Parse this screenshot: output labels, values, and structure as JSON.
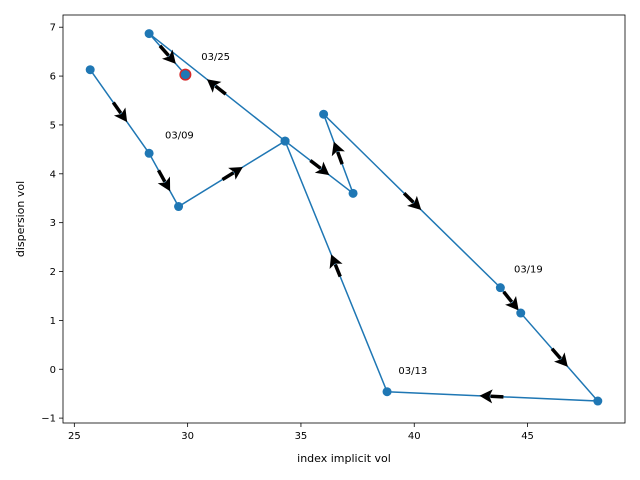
{
  "chart_data": {
    "type": "line",
    "xlabel": "index implicit vol",
    "ylabel": "dispersion vol",
    "xlim": [
      24.5,
      49.3
    ],
    "ylim": [
      -1.1,
      7.25
    ],
    "xticks": [
      25,
      30,
      35,
      40,
      45
    ],
    "yticks": [
      -1,
      0,
      1,
      2,
      3,
      4,
      5,
      6,
      7
    ],
    "series_color": "#1f77b4",
    "highlight_color": "#d62728",
    "arrow_color": "#000000",
    "grid": false,
    "points": [
      {
        "x": 25.7,
        "y": 6.13
      },
      {
        "x": 28.3,
        "y": 4.42
      },
      {
        "x": 29.6,
        "y": 3.33
      },
      {
        "x": 34.3,
        "y": 4.67
      },
      {
        "x": 37.3,
        "y": 3.6
      },
      {
        "x": 36.0,
        "y": 5.22
      },
      {
        "x": 43.8,
        "y": 1.67
      },
      {
        "x": 44.7,
        "y": 1.15
      },
      {
        "x": 48.1,
        "y": -0.65
      },
      {
        "x": 38.8,
        "y": -0.46
      },
      {
        "x": 34.3,
        "y": 4.67
      },
      {
        "x": 28.3,
        "y": 6.87
      },
      {
        "x": 29.9,
        "y": 6.03
      }
    ],
    "highlight_point": {
      "x": 29.9,
      "y": 6.03
    },
    "annotations": [
      {
        "text": "03/25",
        "x": 30.6,
        "y": 6.33
      },
      {
        "text": "03/09",
        "x": 29.0,
        "y": 4.72
      },
      {
        "text": "03/19",
        "x": 44.4,
        "y": 1.98
      },
      {
        "text": "03/13",
        "x": 39.3,
        "y": -0.1
      }
    ]
  }
}
